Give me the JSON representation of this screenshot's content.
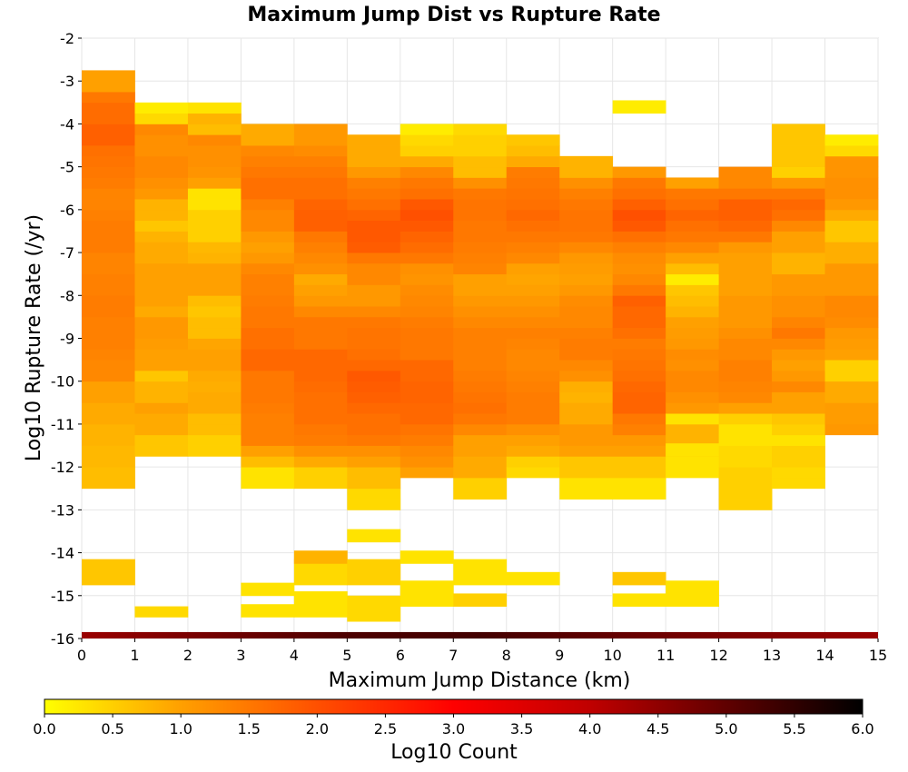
{
  "chart_data": {
    "type": "heatmap",
    "title": "Maximum Jump Dist vs Rupture Rate",
    "xlabel": "Maximum Jump Distance (km)",
    "ylabel": "Log10 Rupture Rate (/yr)",
    "xlim": [
      0,
      15
    ],
    "ylim": [
      -16,
      -2
    ],
    "x_ticks": [
      "0",
      "1",
      "2",
      "3",
      "4",
      "5",
      "6",
      "7",
      "8",
      "9",
      "10",
      "11",
      "12",
      "13",
      "14",
      "15"
    ],
    "y_ticks": [
      "-2",
      "-3",
      "-4",
      "-5",
      "-6",
      "-7",
      "-8",
      "-9",
      "-10",
      "-11",
      "-12",
      "-13",
      "-14",
      "-15",
      "-16"
    ],
    "x_bin_width": 1,
    "y_bin_height": 0.25,
    "grid": true,
    "colorbar": {
      "label": "Log10 Count",
      "range": [
        0,
        6
      ],
      "ticks": [
        "0.0",
        "0.5",
        "1.0",
        "1.5",
        "2.0",
        "2.5",
        "3.0",
        "3.5",
        "4.0",
        "4.5",
        "5.0",
        "5.5",
        "6.0"
      ],
      "colors": [
        "#ffff00",
        "#ffa000",
        "#ff5000",
        "#ff0000",
        "#c00000",
        "#600000",
        "#000000"
      ]
    },
    "bottom_row": {
      "y_range": [
        -16,
        -15.85
      ],
      "value": 4.5
    },
    "columns": [
      {
        "x": 0,
        "y0": -12.5,
        "values": [
          0.7,
          0.7,
          0.75,
          0.75,
          0.8,
          0.8,
          0.9,
          0.9,
          1.0,
          1.0,
          1.3,
          1.3,
          1.35,
          1.4,
          1.4,
          1.4,
          1.45,
          1.45,
          1.4,
          1.4,
          1.35,
          1.35,
          1.45,
          1.45,
          1.45,
          1.4,
          1.35,
          1.35,
          1.45,
          1.5,
          1.55,
          1.6,
          1.8,
          1.8,
          1.65,
          1.65,
          1.5,
          1.0,
          1.0
        ],
        "extra": [
          {
            "y": -14.75,
            "h": 0.6,
            "v": 0.6
          }
        ]
      },
      {
        "x": 1,
        "y0": -11.75,
        "values": [
          0.6,
          0.6,
          0.9,
          0.9,
          1.0,
          0.8,
          0.8,
          0.6,
          1.0,
          1.0,
          1.05,
          1.1,
          1.1,
          0.9,
          1.0,
          1.0,
          1.0,
          1.0,
          0.9,
          0.9,
          0.8,
          0.6,
          0.8,
          0.8,
          1.1,
          1.2,
          1.3,
          1.3,
          1.2,
          1.2,
          1.3,
          0.4,
          0.2
        ],
        "extra": [
          {
            "y": -15.5,
            "h": 0.25,
            "v": 0.4
          }
        ]
      },
      {
        "x": 2,
        "y0": -11.75,
        "values": [
          0.5,
          0.5,
          0.7,
          0.7,
          0.9,
          0.9,
          0.85,
          0.9,
          1.0,
          1.0,
          0.95,
          0.7,
          0.7,
          0.6,
          0.7,
          1.0,
          1.0,
          1.0,
          0.8,
          0.75,
          0.5,
          0.5,
          0.5,
          0.3,
          0.3,
          1.0,
          1.15,
          1.2,
          1.2,
          1.3,
          0.7,
          0.8,
          0.3
        ]
      },
      {
        "x": 3,
        "y0": -12.5,
        "values": [
          0.3,
          0.3,
          0.7,
          1.0,
          1.4,
          1.4,
          1.4,
          1.45,
          1.5,
          1.5,
          1.5,
          1.7,
          1.7,
          1.6,
          1.6,
          1.5,
          1.5,
          1.45,
          1.4,
          1.4,
          1.3,
          1.1,
          1.0,
          1.1,
          1.3,
          1.3,
          1.4,
          1.6,
          1.6,
          1.5,
          1.4,
          1.3,
          0.9,
          0.9
        ],
        "extra": [
          {
            "y": -15.5,
            "h": 0.3,
            "v": 0.3
          },
          {
            "y": -15,
            "h": 0.3,
            "v": 0.3
          }
        ]
      },
      {
        "x": 4,
        "y0": -12.5,
        "values": [
          0.5,
          0.5,
          0.9,
          1.2,
          1.45,
          1.5,
          1.6,
          1.6,
          1.6,
          1.65,
          1.7,
          1.7,
          1.7,
          1.5,
          1.5,
          1.5,
          1.3,
          1.1,
          1.0,
          0.9,
          1.2,
          1.3,
          1.4,
          1.5,
          1.8,
          1.8,
          1.75,
          1.6,
          1.6,
          1.5,
          1.4,
          1.25,
          1.1,
          1.1
        ],
        "extra": [
          {
            "y": -15.5,
            "h": 0.6,
            "v": 0.3
          },
          {
            "y": -14.75,
            "h": 0.6,
            "v": 0.4
          },
          {
            "y": -14.25,
            "h": 0.3,
            "v": 0.8
          }
        ]
      },
      {
        "x": 5,
        "y0": -13,
        "values": [
          0.4,
          0.4,
          0.7,
          0.7,
          1.0,
          1.2,
          1.5,
          1.6,
          1.6,
          1.7,
          1.8,
          1.85,
          1.9,
          1.7,
          1.6,
          1.55,
          1.55,
          1.5,
          1.3,
          1.1,
          1.1,
          1.3,
          1.3,
          1.5,
          1.85,
          1.9,
          1.9,
          1.75,
          1.6,
          1.5,
          1.4,
          1.1,
          0.9,
          0.9,
          0.9
        ],
        "extra": [
          {
            "y": -15.6,
            "h": 0.6,
            "v": 0.4
          },
          {
            "y": -14.75,
            "h": 0.6,
            "v": 0.5
          },
          {
            "y": -13.75,
            "h": 0.3,
            "v": 0.3
          }
        ]
      },
      {
        "x": 6,
        "y0": -12.25,
        "values": [
          1.0,
          1.2,
          1.3,
          1.45,
          1.55,
          1.7,
          1.7,
          1.75,
          1.75,
          1.7,
          1.7,
          1.5,
          1.5,
          1.5,
          1.45,
          1.35,
          1.3,
          1.25,
          1.15,
          1.2,
          1.5,
          1.65,
          1.75,
          1.9,
          2.0,
          1.9,
          1.6,
          1.5,
          1.3,
          0.9,
          0.5,
          0.4,
          0.2
        ],
        "extra": [
          {
            "y": -15.25,
            "h": 0.6,
            "v": 0.3
          },
          {
            "y": -14.25,
            "h": 0.3,
            "v": 0.3
          }
        ]
      },
      {
        "x": 7,
        "y0": -12.75,
        "values": [
          0.5,
          0.5,
          0.9,
          0.9,
          1.0,
          1.0,
          1.3,
          1.5,
          1.6,
          1.55,
          1.5,
          1.45,
          1.4,
          1.4,
          1.4,
          1.4,
          1.3,
          1.2,
          1.1,
          1.0,
          1.0,
          1.35,
          1.4,
          1.45,
          1.5,
          1.5,
          1.55,
          1.55,
          1.5,
          1.2,
          0.7,
          0.7,
          0.5,
          0.5,
          0.4
        ],
        "extra": [
          {
            "y": -15.25,
            "h": 0.3,
            "v": 0.5
          },
          {
            "y": -14.75,
            "h": 0.6,
            "v": 0.3
          }
        ]
      },
      {
        "x": 8,
        "y0": -12.25,
        "values": [
          0.4,
          0.5,
          0.9,
          1.0,
          1.2,
          1.45,
          1.45,
          1.45,
          1.4,
          1.35,
          1.3,
          1.3,
          1.35,
          1.4,
          1.3,
          1.2,
          1.1,
          1.0,
          0.95,
          1.0,
          1.3,
          1.4,
          1.5,
          1.6,
          1.7,
          1.6,
          1.55,
          1.5,
          1.45,
          0.9,
          0.7,
          0.6
        ],
        "extra": [
          {
            "y": -14.75,
            "h": 0.3,
            "v": 0.3
          }
        ]
      },
      {
        "x": 9,
        "y0": -12.75,
        "values": [
          0.3,
          0.3,
          0.6,
          0.6,
          1.0,
          1.1,
          1.1,
          0.9,
          0.9,
          0.8,
          0.85,
          1.2,
          1.3,
          1.45,
          1.45,
          1.4,
          1.3,
          1.3,
          1.25,
          1.1,
          1.0,
          1.05,
          1.1,
          1.3,
          1.5,
          1.55,
          1.55,
          1.5,
          1.4,
          1.2,
          0.8,
          0.8
        ]
      },
      {
        "x": 10,
        "y0": -12.75,
        "values": [
          0.3,
          0.3,
          0.6,
          0.6,
          1.0,
          1.1,
          1.4,
          1.5,
          1.75,
          1.75,
          1.7,
          1.6,
          1.55,
          1.5,
          1.45,
          1.6,
          1.7,
          1.7,
          1.8,
          1.5,
          1.3,
          1.2,
          1.25,
          1.4,
          1.6,
          1.9,
          2.0,
          1.8,
          1.6,
          1.5,
          1.1
        ],
        "extra": [
          {
            "y": -15.25,
            "h": 0.3,
            "v": 0.3
          },
          {
            "y": -14.75,
            "h": 0.3,
            "v": 0.6
          },
          {
            "y": -3.75,
            "h": 0.3,
            "v": 0.2
          }
        ]
      },
      {
        "x": 11,
        "y0": -12.25,
        "values": [
          0.3,
          0.3,
          0.6,
          0.8,
          0.8,
          0.3,
          1.1,
          1.2,
          1.3,
          1.3,
          1.2,
          1.25,
          1.1,
          1.05,
          1.0,
          0.8,
          0.7,
          0.6,
          0.2,
          0.7,
          1.0,
          1.3,
          1.5,
          1.6,
          1.75,
          1.6,
          1.5,
          1.0
        ],
        "extra": [
          {
            "y": -15.25,
            "h": 0.6,
            "v": 0.3
          },
          {
            "y": -11.75,
            "h": 0.3,
            "v": 0.3
          }
        ]
      },
      {
        "x": 12,
        "y0": -13,
        "values": [
          0.5,
          0.5,
          0.5,
          0.5,
          0.4,
          0.4,
          0.3,
          0.3,
          0.5,
          1.0,
          1.3,
          1.35,
          1.4,
          1.4,
          1.3,
          1.3,
          1.2,
          1.1,
          1.1,
          1.1,
          1.0,
          1.0,
          1.0,
          1.0,
          1.1,
          1.5,
          1.7,
          1.8,
          1.8,
          1.5,
          1.3,
          1.3
        ]
      },
      {
        "x": 13,
        "y0": -12.5,
        "values": [
          0.4,
          0.4,
          0.5,
          0.5,
          0.3,
          0.5,
          0.6,
          1.0,
          1.0,
          1.3,
          1.1,
          1.0,
          1.1,
          1.3,
          1.5,
          1.35,
          1.2,
          1.2,
          1.1,
          1.1,
          0.8,
          0.8,
          1.0,
          1.0,
          1.3,
          1.6,
          1.7,
          1.5,
          1.1,
          0.5,
          0.6,
          0.6,
          0.6,
          0.6
        ]
      },
      {
        "x": 14,
        "y0": -11.25,
        "values": [
          1.1,
          1.05,
          1.05,
          0.9,
          0.9,
          0.5,
          0.5,
          1.0,
          1.05,
          1.1,
          1.25,
          1.3,
          1.3,
          1.1,
          1.1,
          1.1,
          0.85,
          0.85,
          0.6,
          0.6,
          0.9,
          1.1,
          1.2,
          1.2,
          1.15,
          1.15,
          0.4,
          0.2
        ]
      }
    ]
  }
}
